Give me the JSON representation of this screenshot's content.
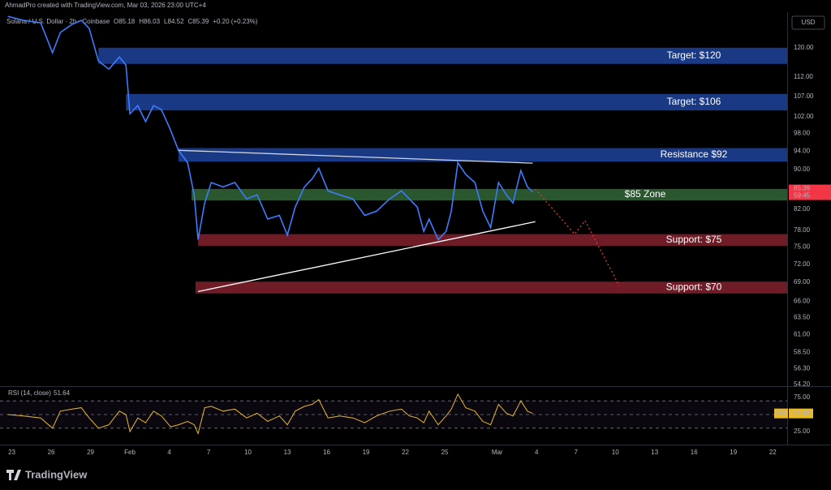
{
  "header": "AhmadPro created with TradingView.com, Mar 03, 2026 23:00 UTC+4",
  "legend": {
    "symbol": "Solana / U.S. Dollar · 2h · Coinbase",
    "ohlc": [
      "O85.18",
      "H86.03",
      "L84.52",
      "C85.39",
      "+0.20 (+0.23%)"
    ]
  },
  "axis_currency": "USD",
  "price_tag": {
    "price": "85.39",
    "countdown": "59:45"
  },
  "footer": "TradingView",
  "chart_data": [
    {
      "type": "line",
      "log_scale": true,
      "color": "#3d7bff",
      "x": [
        -0.3,
        0.9,
        2.2,
        3.1,
        3.7,
        4.6,
        5.3,
        5.9,
        6.6,
        7.4,
        8.2,
        8.7,
        9.0,
        9.6,
        10.2,
        10.8,
        11.4,
        12.1,
        12.7,
        13.4,
        13.9,
        14.2,
        14.7,
        15.2,
        16.1,
        17.0,
        17.9,
        18.7,
        19.5,
        20.4,
        21.0,
        21.6,
        22.3,
        22.9,
        23.4,
        24.1,
        25.0,
        26.0,
        26.9,
        27.8,
        28.8,
        29.7,
        30.3,
        30.9,
        31.4,
        31.8,
        32.5,
        33.1,
        33.5,
        34.0,
        34.6,
        35.3,
        35.9,
        36.5,
        37.1,
        37.7,
        38.2,
        38.8,
        39.3,
        39.7
      ],
      "values": [
        129.2,
        128.0,
        127.3,
        118.6,
        124.4,
        126.8,
        128.0,
        125.6,
        116.3,
        114.1,
        117.4,
        115.2,
        102.7,
        104.7,
        100.8,
        104.7,
        103.7,
        98.8,
        94.2,
        91.5,
        84.8,
        76.3,
        83.2,
        87.3,
        86.4,
        87.3,
        84.0,
        84.8,
        80.1,
        80.8,
        77.1,
        82.4,
        86.4,
        88.1,
        90.3,
        85.6,
        84.8,
        84.0,
        80.8,
        81.6,
        84.0,
        85.6,
        84.0,
        82.4,
        77.8,
        80.1,
        76.3,
        77.8,
        81.6,
        91.5,
        89.0,
        87.3,
        81.6,
        78.5,
        87.3,
        84.8,
        83.2,
        89.8,
        86.4,
        85.4
      ],
      "xlim": [
        -0.9,
        59.1
      ],
      "ylim": [
        54,
        130.5
      ],
      "xticks": [
        {
          "value": 0,
          "label": "23"
        },
        {
          "value": 3,
          "label": "26"
        },
        {
          "value": 6,
          "label": "29"
        },
        {
          "value": 9,
          "label": "Feb"
        },
        {
          "value": 12,
          "label": "4"
        },
        {
          "value": 15,
          "label": "7"
        },
        {
          "value": 18,
          "label": "10"
        },
        {
          "value": 21,
          "label": "13"
        },
        {
          "value": 24,
          "label": "16"
        },
        {
          "value": 27,
          "label": "19"
        },
        {
          "value": 30,
          "label": "22"
        },
        {
          "value": 33,
          "label": "25"
        },
        {
          "value": 37,
          "label": "Mar"
        },
        {
          "value": 40,
          "label": "4"
        },
        {
          "value": 43,
          "label": "7"
        },
        {
          "value": 46,
          "label": "10"
        },
        {
          "value": 49,
          "label": "13"
        },
        {
          "value": 52,
          "label": "16"
        },
        {
          "value": 55,
          "label": "19"
        },
        {
          "value": 58,
          "label": "22"
        }
      ],
      "yticks": [
        {
          "value": 120,
          "label": "120.00"
        },
        {
          "value": 112,
          "label": "112.00"
        },
        {
          "value": 107,
          "label": "107.00"
        },
        {
          "value": 102,
          "label": "102.00"
        },
        {
          "value": 98,
          "label": "98.00"
        },
        {
          "value": 94,
          "label": "94.00"
        },
        {
          "value": 90,
          "label": "90.00"
        },
        {
          "value": 82,
          "label": "82.00"
        },
        {
          "value": 78,
          "label": "78.00"
        },
        {
          "value": 75,
          "label": "75.00"
        },
        {
          "value": 72,
          "label": "72.00"
        },
        {
          "value": 69,
          "label": "69.00"
        },
        {
          "value": 66,
          "label": "66.00"
        },
        {
          "value": 63.5,
          "label": "63.50"
        },
        {
          "value": 61,
          "label": "61.00"
        },
        {
          "value": 58.5,
          "label": "58.50"
        },
        {
          "value": 56.3,
          "label": "56.30"
        },
        {
          "value": 54.2,
          "label": "54.20"
        }
      ],
      "zones": [
        {
          "label": "Target: $120",
          "x_start": 6.6,
          "low": 115.5,
          "high": 120,
          "color": "#1c3f94"
        },
        {
          "label": "Target: $106",
          "x_start": 8.7,
          "low": 103.5,
          "high": 107.6,
          "color": "#1c3f94"
        },
        {
          "label": "Resistance $92",
          "x_start": 12.7,
          "low": 91.7,
          "high": 94.7,
          "color": "#1c3f94"
        },
        {
          "label": "$85 Zone",
          "x_start": 13.7,
          "low": 83.7,
          "high": 86.0,
          "color": "#2f6132"
        },
        {
          "label": "Support: $75",
          "x_start": 14.2,
          "low": 75.2,
          "high": 77.3,
          "color": "#7b1f2b"
        },
        {
          "label": "Support: $70",
          "x_start": 14.0,
          "low": 67.2,
          "high": 69.1,
          "color": "#7b1f2b"
        }
      ],
      "trendlines": [
        {
          "x": [
            12.7,
            39.7
          ],
          "y": [
            94.2,
            91.4
          ],
          "color": "#d1d4dc",
          "style": "solid"
        },
        {
          "x": [
            14.2,
            39.9
          ],
          "y": [
            67.5,
            79.6
          ],
          "color": "#ffffff",
          "style": "solid"
        },
        {
          "x": [
            39.9,
            42.9,
            43.7,
            46.3
          ],
          "y": [
            86.0,
            77.3,
            79.8,
            68.4
          ],
          "color": "#e53935",
          "style": "dotted"
        }
      ]
    },
    {
      "type": "line",
      "title": "RSI (14, close)",
      "last_label": "51.64",
      "tag": "RSI",
      "color": "#e8b92a",
      "x": [
        -0.3,
        0.9,
        2.2,
        3.1,
        3.7,
        4.6,
        5.3,
        5.9,
        6.6,
        7.4,
        8.2,
        8.7,
        9.0,
        9.6,
        10.2,
        10.8,
        11.4,
        12.1,
        12.7,
        13.4,
        13.9,
        14.2,
        14.7,
        15.2,
        16.1,
        17.0,
        17.9,
        18.7,
        19.5,
        20.4,
        21.0,
        21.6,
        22.3,
        22.9,
        23.4,
        24.1,
        25.0,
        26.0,
        26.9,
        27.8,
        28.8,
        29.7,
        30.3,
        30.9,
        31.4,
        31.8,
        32.5,
        33.1,
        33.5,
        34.0,
        34.6,
        35.3,
        35.9,
        36.5,
        37.1,
        37.7,
        38.2,
        38.8,
        39.3,
        39.7
      ],
      "values": [
        50,
        48,
        45,
        30,
        55,
        58,
        60,
        45,
        30,
        35,
        55,
        50,
        25,
        45,
        38,
        55,
        48,
        32,
        35,
        40,
        35,
        22,
        60,
        62,
        55,
        58,
        45,
        52,
        40,
        48,
        35,
        55,
        62,
        65,
        72,
        45,
        48,
        45,
        38,
        48,
        55,
        58,
        48,
        45,
        38,
        55,
        35,
        48,
        58,
        80,
        60,
        55,
        40,
        35,
        65,
        52,
        48,
        70,
        55,
        51.64
      ],
      "xlim": [
        -0.9,
        59.1
      ],
      "ylim": [
        9.5,
        89.3
      ],
      "yticks": [
        {
          "value": 75,
          "label": "75.00"
        },
        {
          "value": 25,
          "label": "25.00"
        }
      ],
      "bands": [
        30,
        50,
        70
      ]
    }
  ]
}
